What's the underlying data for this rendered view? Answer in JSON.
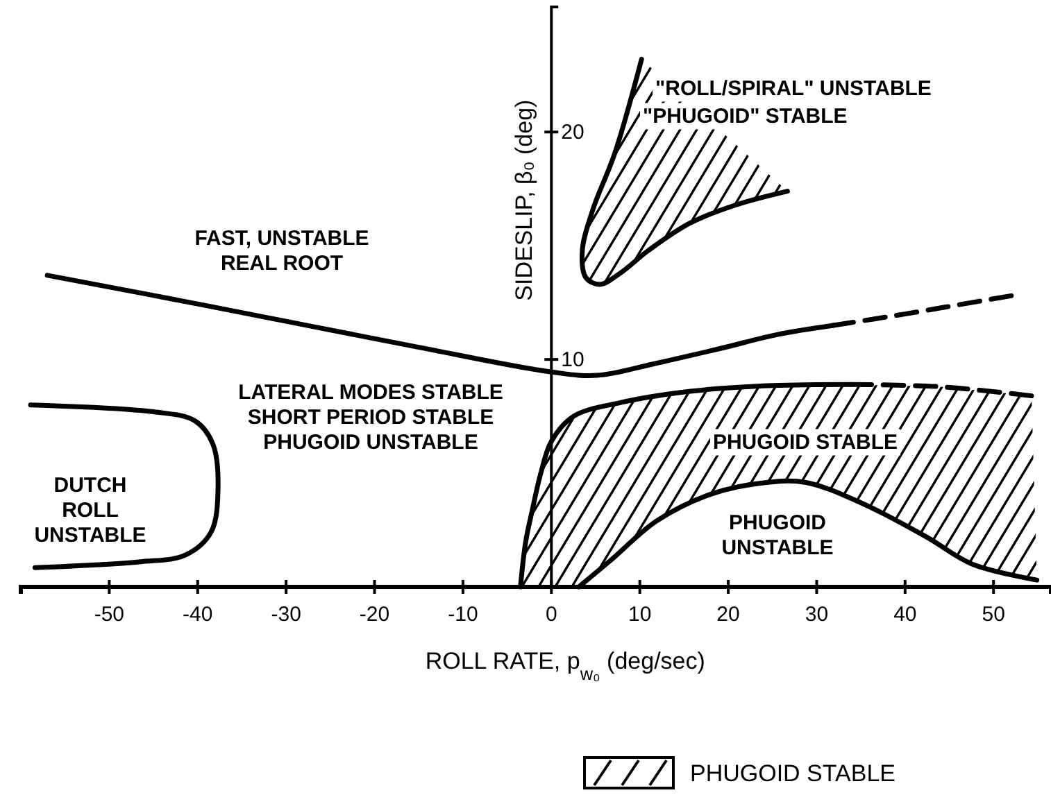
{
  "chart_data": {
    "type": "line",
    "xlabel": "ROLL RATE, p$_{w₀}$ (deg/sec)",
    "ylabel": "SIDESLIP, β₀ (deg)",
    "xlim": [
      -60,
      56.5
    ],
    "ylim": [
      0,
      25.5
    ],
    "xticks": [
      -50,
      -40,
      -30,
      -20,
      -10,
      0,
      10,
      20,
      30,
      40,
      50
    ],
    "yticks": [
      10,
      20
    ],
    "grid": false,
    "marker": "none",
    "series": [
      {
        "color": "#000000",
        "line_style": "solid",
        "x": [
          -57,
          -38.8,
          -15.2,
          0,
          5.2,
          11.5,
          19.3,
          25.6,
          31.9
        ],
        "values": [
          13.7,
          12.35,
          10.55,
          9.45,
          9.3,
          9.8,
          10.5,
          11.1,
          11.5
        ]
      },
      {
        "color": "#000000",
        "line_style": "dashed",
        "x": [
          31.9,
          40,
          46,
          52
        ],
        "values": [
          11.5,
          12.0,
          12.4,
          12.8
        ]
      },
      {
        "color": "#000000",
        "line_style": "solid",
        "x": [
          10.2,
          7.2,
          4.7,
          3.5,
          3.9,
          5.5,
          7.8,
          11,
          15.7,
          20.9,
          26.7
        ],
        "values": [
          23.2,
          19.1,
          16.6,
          14.8,
          13.6,
          13.3,
          13.8,
          14.8,
          16.0,
          16.8,
          17.4
        ]
      },
      {
        "color": "#000000",
        "line_style": "solid",
        "x": [
          -58.9,
          -45,
          -40.3,
          -38.3,
          -37.7,
          -38.5,
          -41.4,
          -46.6,
          -58.4
        ],
        "values": [
          8.0,
          7.7,
          7.3,
          6.3,
          4.3,
          2.4,
          1.4,
          1.1,
          0.85
        ]
      },
      {
        "color": "#000000",
        "line_style": "solid",
        "x": [
          -3.5,
          -2.9,
          -2.2,
          -1.2,
          0,
          2.5,
          7.8,
          15.7,
          25,
          33.9
        ],
        "values": [
          0,
          2,
          3.3,
          5.0,
          6.4,
          7.5,
          8.1,
          8.6,
          8.85,
          8.9
        ]
      },
      {
        "color": "#000000",
        "line_style": "dashed",
        "x": [
          33.9,
          44,
          54.3
        ],
        "values": [
          8.9,
          8.8,
          8.4
        ]
      },
      {
        "color": "#000000",
        "line_style": "solid",
        "x": [
          3.1,
          6.8,
          11.9,
          18.2,
          24.5,
          28.7,
          35,
          42.4,
          47.6,
          54.9
        ],
        "values": [
          0,
          1.2,
          2.9,
          4.1,
          4.6,
          4.6,
          3.7,
          2.2,
          1.0,
          0.3
        ]
      }
    ],
    "annotations": [
      "FAST, UNSTABLE\nREAL ROOT",
      "\"ROLL/SPIRAL\" UNSTABLE",
      "\"PHUGOID\" STABLE",
      "LATERAL MODES STABLE\nSHORT PERIOD STABLE\nPHUGOID UNSTABLE",
      "DUTCH\nROLL\nUNSTABLE",
      "PHUGOID STABLE",
      "PHUGOID\nUNSTABLE",
      "PHUGOID STABLE"
    ]
  }
}
